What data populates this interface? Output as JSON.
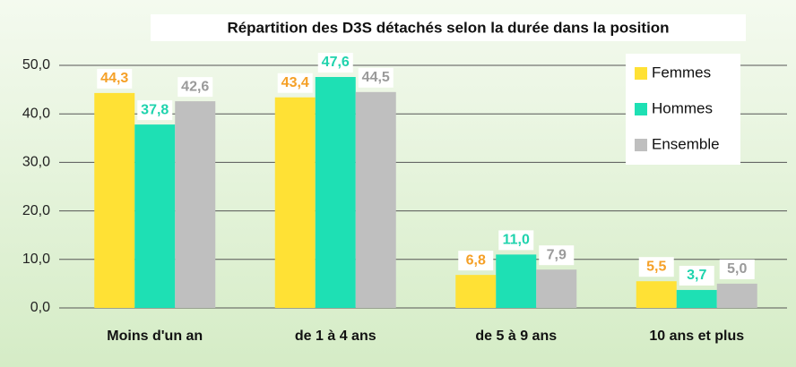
{
  "chart_data": {
    "type": "bar",
    "title": "Répartition  des D3S détachés selon la durée dans la position",
    "categories": [
      "Moins d'un an",
      "de 1 à 4 ans",
      "de 5 à 9 ans",
      "10 ans et plus"
    ],
    "series": [
      {
        "name": "Femmes",
        "color": "#ffe135",
        "label_color": "#f5a027",
        "values": [
          44.3,
          43.4,
          6.8,
          5.5
        ],
        "value_labels": [
          "44,3",
          "43,4",
          "6,8",
          "5,5"
        ]
      },
      {
        "name": "Hommes",
        "color": "#1ee0b4",
        "label_color": "#1fd3ad",
        "values": [
          37.8,
          47.6,
          11.0,
          3.7
        ],
        "value_labels": [
          "37,8",
          "47,6",
          "11,0",
          "3,7"
        ]
      },
      {
        "name": "Ensemble",
        "color": "#bfbfbf",
        "label_color": "#9a9a9a",
        "values": [
          42.6,
          44.5,
          7.9,
          5.0
        ],
        "value_labels": [
          "42,6",
          "44,5",
          "7,9",
          "5,0"
        ]
      }
    ],
    "ylim": [
      0,
      50
    ],
    "yticks": [
      {
        "value": 0,
        "label": "0,0"
      },
      {
        "value": 10,
        "label": "10,0"
      },
      {
        "value": 20,
        "label": "20,0"
      },
      {
        "value": 30,
        "label": "30,0"
      },
      {
        "value": 40,
        "label": "40,0"
      },
      {
        "value": 50,
        "label": "50,0"
      }
    ],
    "grid": true,
    "legend": "upper right"
  }
}
